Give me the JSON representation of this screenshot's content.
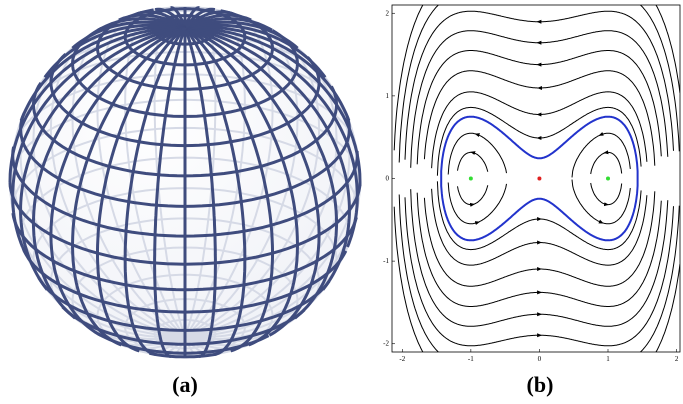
{
  "panels": [
    {
      "label": "(a)"
    },
    {
      "label": "(b)",
      "type": "streamplot",
      "xlim": [
        -2.15,
        2.05
      ],
      "ylim": [
        -2.1,
        2.1
      ],
      "xticks": [
        -2,
        -1,
        0,
        1,
        2
      ],
      "yticks": [
        -2,
        -1,
        0,
        1,
        2
      ],
      "points": [
        {
          "x": -1,
          "y": 0,
          "color": "#33dd33"
        },
        {
          "x": 1,
          "y": 0,
          "color": "#33dd33"
        },
        {
          "x": 0,
          "y": 0,
          "color": "#e02020"
        }
      ]
    }
  ]
}
